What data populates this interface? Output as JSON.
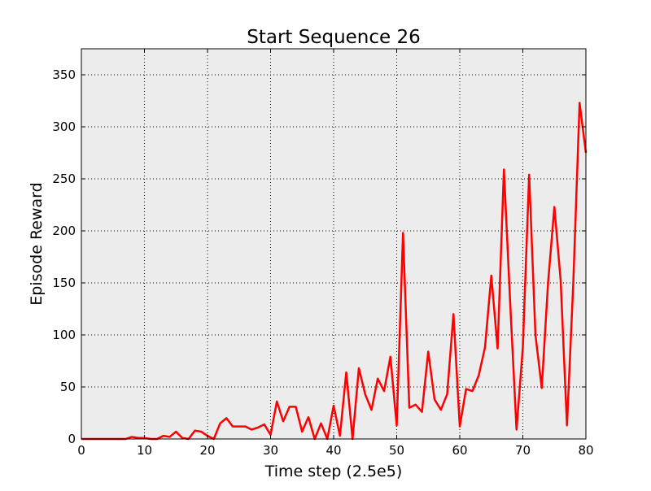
{
  "chart_data": {
    "type": "line",
    "title": "Start Sequence 26",
    "xlabel": "Time step (2.5e5)",
    "ylabel": "Episode Reward",
    "xlim": [
      0,
      80
    ],
    "ylim": [
      0,
      375
    ],
    "xticks": [
      0,
      10,
      20,
      30,
      40,
      50,
      60,
      70,
      80
    ],
    "yticks": [
      0,
      50,
      100,
      150,
      200,
      250,
      300,
      350
    ],
    "grid": true,
    "background_color": "#ececec",
    "series": [
      {
        "color": "#ff0000",
        "x": [
          0,
          1,
          2,
          3,
          4,
          5,
          6,
          7,
          8,
          9,
          10,
          11,
          12,
          13,
          14,
          15,
          16,
          17,
          18,
          19,
          20,
          21,
          22,
          23,
          24,
          25,
          26,
          27,
          28,
          29,
          30,
          31,
          32,
          33,
          34,
          35,
          36,
          37,
          38,
          39,
          40,
          41,
          42,
          43,
          44,
          45,
          46,
          47,
          48,
          49,
          50,
          51,
          52,
          53,
          54,
          55,
          56,
          57,
          58,
          59,
          60,
          61,
          62,
          63,
          64,
          65,
          66,
          67,
          68,
          69,
          70,
          71,
          72,
          73,
          74,
          75,
          76,
          77,
          78,
          79,
          80
        ],
        "y": [
          0,
          0,
          0,
          0,
          0,
          0,
          0,
          0,
          2,
          1,
          1,
          0,
          0,
          3,
          2,
          7,
          1,
          0,
          8,
          7,
          3,
          0,
          15,
          20,
          12,
          12,
          12,
          9,
          11,
          14,
          4,
          36,
          17,
          31,
          31,
          7,
          21,
          0,
          15,
          0,
          32,
          3,
          64,
          0,
          68,
          43,
          28,
          58,
          46,
          79,
          13,
          198,
          30,
          33,
          26,
          84,
          38,
          28,
          43,
          120,
          12,
          48,
          46,
          61,
          88,
          157,
          87,
          259,
          130,
          9,
          88,
          254,
          100,
          49,
          150,
          223,
          152,
          13,
          150,
          323,
          275
        ]
      }
    ]
  }
}
